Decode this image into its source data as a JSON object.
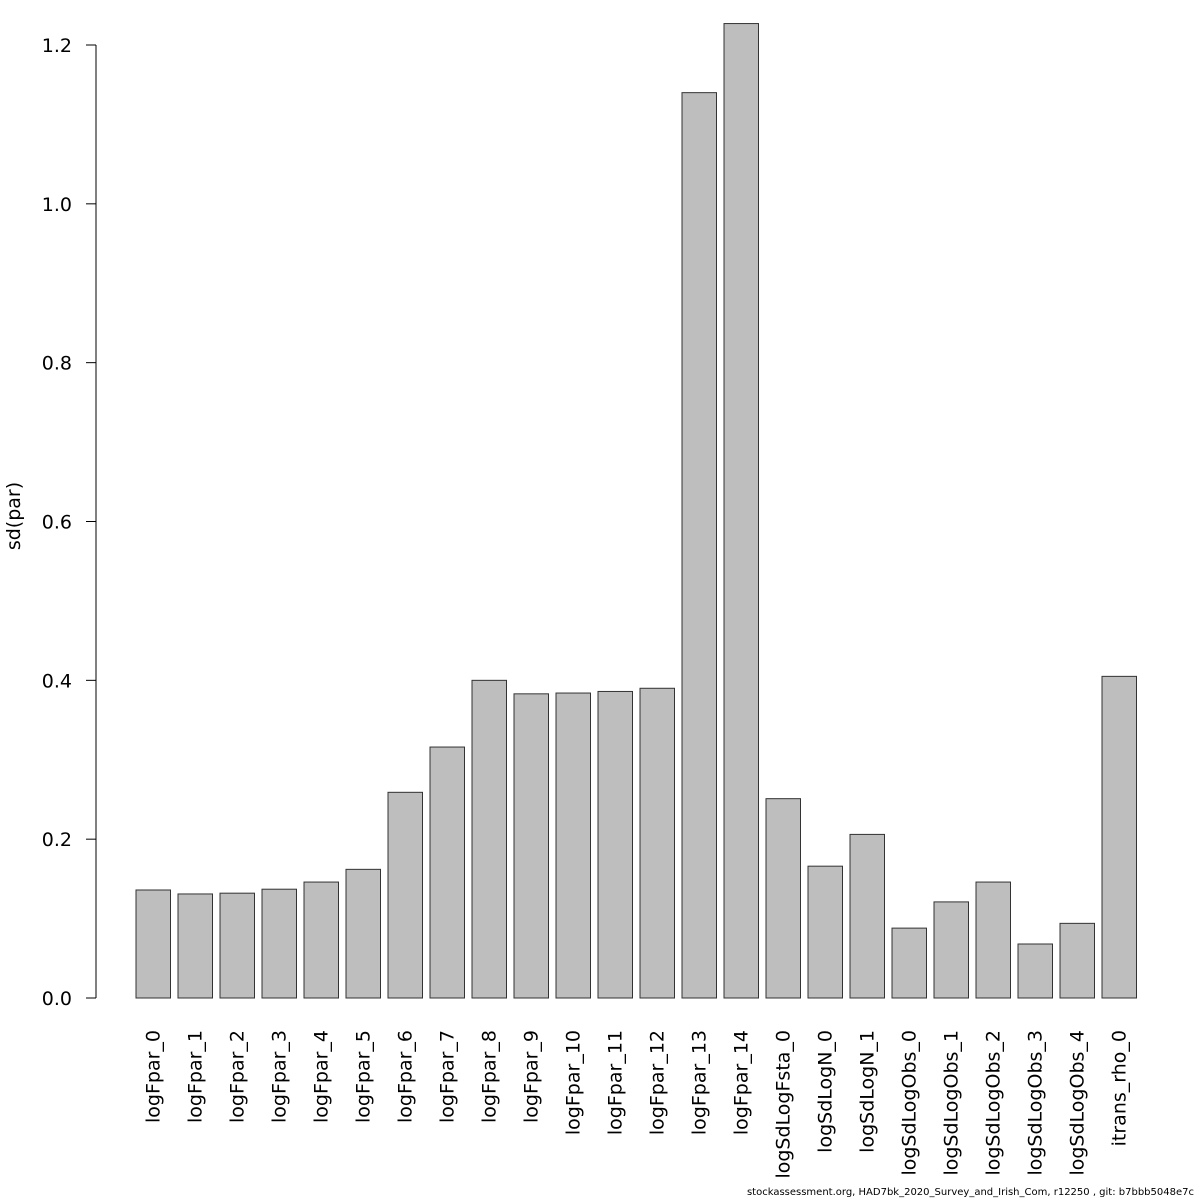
{
  "chart_data": {
    "type": "bar",
    "ylabel": "sd(par)",
    "ylim": [
      0,
      1.2
    ],
    "yticks": [
      "0.0",
      "0.2",
      "0.4",
      "0.6",
      "0.8",
      "1.0",
      "1.2"
    ],
    "bar_color": "#bebebe",
    "categories": [
      "logFpar_0",
      "logFpar_1",
      "logFpar_2",
      "logFpar_3",
      "logFpar_4",
      "logFpar_5",
      "logFpar_6",
      "logFpar_7",
      "logFpar_8",
      "logFpar_9",
      "logFpar_10",
      "logFpar_11",
      "logFpar_12",
      "logFpar_13",
      "logFpar_14",
      "logSdLogFsta_0",
      "logSdLogN_0",
      "logSdLogN_1",
      "logSdLogObs_0",
      "logSdLogObs_1",
      "logSdLogObs_2",
      "logSdLogObs_3",
      "logSdLogObs_4",
      "itrans_rho_0"
    ],
    "values": [
      0.136,
      0.131,
      0.132,
      0.137,
      0.146,
      0.162,
      0.259,
      0.316,
      0.4,
      0.383,
      0.384,
      0.386,
      0.39,
      1.14,
      1.227,
      0.251,
      0.166,
      0.206,
      0.088,
      0.121,
      0.146,
      0.068,
      0.094,
      0.405
    ]
  },
  "footer": {
    "text": "stockassessment.org, HAD7bk_2020_Survey_and_Irish_Com, r12250 , git: b7bbb5048e7c"
  }
}
